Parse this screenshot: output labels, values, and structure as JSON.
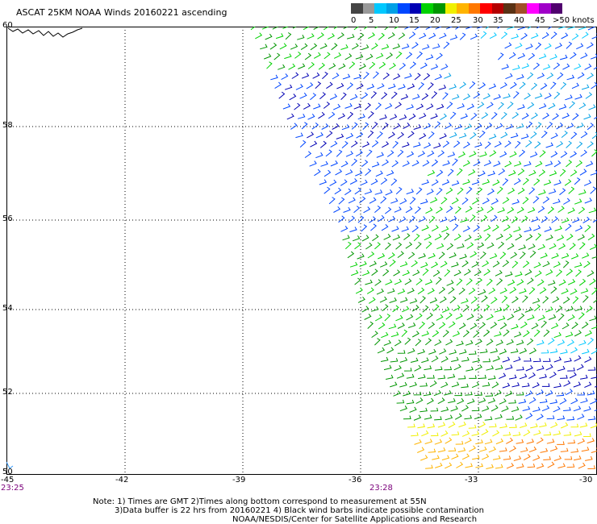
{
  "title": "ASCAT 25KM NOAA Winds 20160221 ascending",
  "legend": {
    "labels": [
      "0",
      "5",
      "10",
      "15",
      "20",
      "25",
      "30",
      "35",
      "40",
      "45",
      ">50 knots"
    ],
    "colors": [
      "#444444",
      "#999999",
      "#00c8ff",
      "#00a0e6",
      "#0046ff",
      "#0000b4",
      "#00d200",
      "#009600",
      "#f0f000",
      "#ffb400",
      "#ff7800",
      "#ff0000",
      "#b40000",
      "#5a3214",
      "#a05028",
      "#ff00ff",
      "#a000c8",
      "#50006e"
    ]
  },
  "map": {
    "lon_range": [
      -45,
      -30
    ],
    "lat_range": [
      50,
      60
    ],
    "lon_ticks": [
      "-45",
      "-42",
      "-39",
      "-36",
      "-33",
      "-30"
    ],
    "lat_ticks": [
      "60",
      "58",
      "56",
      "54",
      "52",
      "50"
    ],
    "times": [
      "23:25",
      "23:28"
    ],
    "swath_west_edge_lon": [
      [
        60,
        -38.8
      ],
      [
        58,
        -37.8
      ],
      [
        56,
        -36.6
      ],
      [
        54,
        -36.0
      ],
      [
        52,
        -35.2
      ],
      [
        50,
        -34.3
      ]
    ]
  },
  "footer": {
    "line1": "Note: 1) Times are GMT 2)Times along bottom correspond to measurement at 55N",
    "line2": "3)Data buffer is 22 hrs from 20160221 4) Black wind barbs indicate possible contamination",
    "line3": "NOAA/NESDIS/Center for Satellite Applications and Research"
  }
}
